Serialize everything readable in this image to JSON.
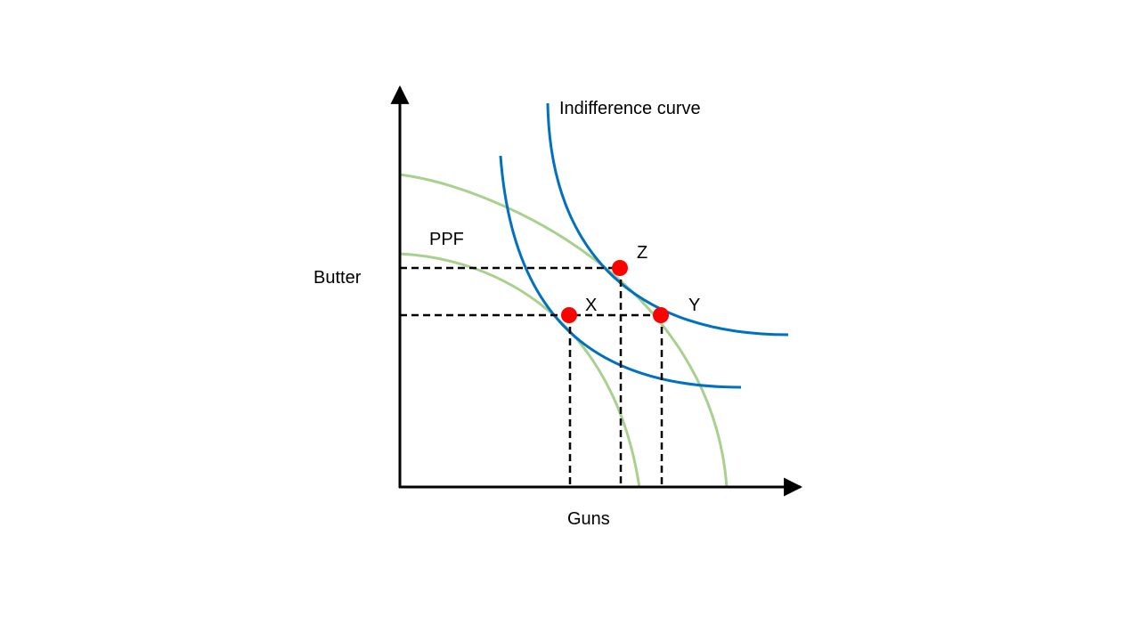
{
  "labels": {
    "y_axis": "Butter",
    "x_axis": "Guns",
    "ppf": "PPF",
    "indifference_curve": "Indifference curve",
    "point_x": "X",
    "point_y": "Y",
    "point_z": "Z"
  },
  "colors": {
    "ppf": "#a9d18e",
    "indifference": "#0070c0",
    "point": "#ff0000",
    "axis": "#000000",
    "guide": "#000000"
  }
}
